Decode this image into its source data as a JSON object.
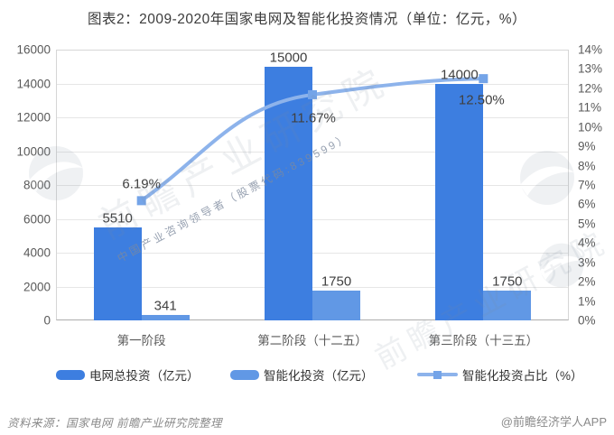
{
  "title": "图表2：2009-2020年国家电网及智能化投资情况（单位：亿元，%）",
  "chart_data": {
    "type": "bar",
    "subtype": "grouped bars with overlay line (dual y-axis)",
    "title": "图表2：2009-2020年国家电网及智能化投资情况（单位：亿元，%）",
    "categories": [
      "第一阶段",
      "第二阶段（十二五）",
      "第三阶段（十三五）"
    ],
    "series": [
      {
        "name": "电网总投资（亿元）",
        "kind": "bar",
        "axis": "left",
        "color": "#3d7ee0",
        "values": [
          5510,
          15000,
          14000
        ],
        "labels": [
          "5510",
          "15000",
          "14000"
        ]
      },
      {
        "name": "智能化投资（亿元）",
        "kind": "bar",
        "axis": "left",
        "color": "#6198e5",
        "values": [
          341,
          1750,
          1750
        ],
        "labels": [
          "341",
          "1750",
          "1750"
        ]
      },
      {
        "name": "智能化投资占比（%）",
        "kind": "line",
        "axis": "right",
        "color": "#8db3eb",
        "marker_color": "#74a4e8",
        "values": [
          6.19,
          11.67,
          12.5
        ],
        "labels": [
          "6.19%",
          "11.67%",
          "12.50%"
        ]
      }
    ],
    "y_left": {
      "min": 0,
      "max": 16000,
      "step": 2000,
      "ticks": [
        "16000",
        "14000",
        "12000",
        "10000",
        "8000",
        "6000",
        "4000",
        "2000",
        "0"
      ]
    },
    "y_right": {
      "min": 0,
      "max": 14,
      "step": 1,
      "ticks": [
        "14%",
        "13%",
        "12%",
        "11%",
        "10%",
        "9%",
        "8%",
        "7%",
        "6%",
        "5%",
        "4%",
        "3%",
        "2%",
        "1%",
        "0%"
      ]
    },
    "grid": true,
    "legend_position": "bottom"
  },
  "watermark": {
    "main_text": "前瞻产业研究院",
    "sub_text": "中国产业咨询领导者（股票代码:839599）"
  },
  "footer": {
    "source": "资料来源：国家电网  前瞻产业研究院整理",
    "credit": "@前瞻经济学人APP"
  }
}
